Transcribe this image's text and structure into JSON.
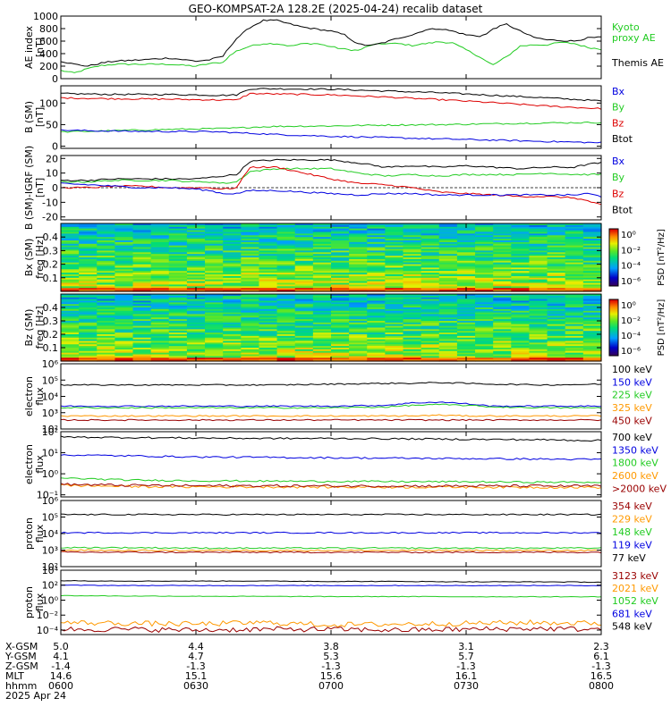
{
  "title": "GEO-KOMPSAT-2A 128.2E (2025-04-24) recalib dataset",
  "colors": {
    "black": "#000000",
    "blue": "#0000e0",
    "green": "#22cc22",
    "red": "#dd0000",
    "orange": "#ff9900",
    "darkred": "#990000",
    "darkblue": "#0000aa"
  },
  "chart_data": [
    {
      "type": "line",
      "id": "ae",
      "ylabel": [
        "AE index",
        "[nT]"
      ],
      "ylim": [
        0,
        1000
      ],
      "yticks": [
        0,
        200,
        400,
        600,
        800,
        1000
      ],
      "yticklabels": [
        "0",
        "200",
        "400",
        "600",
        "800",
        "1000"
      ],
      "x": [
        6.0,
        6.05,
        6.1,
        6.15,
        6.2,
        6.3,
        6.4,
        6.5,
        6.55,
        6.6,
        6.62,
        6.65,
        6.7,
        6.75,
        6.8,
        6.85,
        6.9,
        6.95,
        7.0,
        7.05,
        7.1,
        7.15,
        7.2,
        7.25,
        7.3,
        7.35,
        7.4,
        7.45,
        7.5,
        7.55,
        7.58,
        7.6,
        7.65,
        7.7,
        7.75,
        7.8,
        7.85,
        7.9,
        7.95,
        8.0
      ],
      "series": [
        {
          "name": "Kyoto proxy AE",
          "color": "green",
          "values": [
            130,
            90,
            160,
            210,
            230,
            230,
            230,
            200,
            240,
            260,
            350,
            440,
            520,
            560,
            560,
            520,
            560,
            560,
            510,
            470,
            450,
            540,
            560,
            560,
            530,
            560,
            590,
            570,
            460,
            350,
            260,
            220,
            350,
            520,
            540,
            540,
            580,
            560,
            500,
            470
          ]
        },
        {
          "name": "Themis AE",
          "color": "black",
          "values": [
            280,
            230,
            200,
            250,
            280,
            300,
            330,
            280,
            300,
            360,
            480,
            640,
            820,
            930,
            930,
            870,
            820,
            790,
            760,
            700,
            550,
            530,
            580,
            650,
            700,
            780,
            800,
            760,
            700,
            680,
            720,
            800,
            870,
            760,
            660,
            620,
            610,
            600,
            650,
            660
          ]
        }
      ],
      "labels": [
        {
          "text": "Kyoto",
          "color": "green"
        },
        {
          "text": "proxy AE",
          "color": "green"
        },
        {
          "text": "Themis AE",
          "color": "black"
        }
      ]
    },
    {
      "type": "line",
      "id": "b_sm",
      "ylabel": [
        "B (SM)",
        "[nT]"
      ],
      "ylim": [
        -5,
        140
      ],
      "yticks": [
        0,
        50,
        100
      ],
      "yticklabels": [
        "0",
        "50",
        "100"
      ],
      "x": [
        6.0,
        6.2,
        6.4,
        6.5,
        6.6,
        6.65,
        6.7,
        6.8,
        7.0,
        7.2,
        7.4,
        7.6,
        7.8,
        8.0
      ],
      "series": [
        {
          "name": "Btot",
          "color": "black",
          "values": [
            122,
            120,
            120,
            119,
            118,
            119,
            133,
            133,
            132,
            128,
            124,
            118,
            112,
            105
          ]
        },
        {
          "name": "Bz",
          "color": "red",
          "values": [
            112,
            110,
            109,
            108,
            107,
            107,
            122,
            121,
            119,
            114,
            108,
            101,
            93,
            87
          ]
        },
        {
          "name": "By",
          "color": "green",
          "values": [
            33,
            36,
            39,
            40,
            41,
            42,
            44,
            46,
            47,
            49,
            50,
            52,
            54,
            55
          ]
        },
        {
          "name": "Bx",
          "color": "blue",
          "values": [
            37,
            35,
            34,
            34,
            33,
            31,
            30,
            27,
            23,
            20,
            17,
            14,
            11,
            8
          ]
        }
      ],
      "labels": [
        {
          "text": "Bx",
          "color": "blue"
        },
        {
          "text": "By",
          "color": "green"
        },
        {
          "text": "Bz",
          "color": "red"
        },
        {
          "text": "Btot",
          "color": "black"
        }
      ]
    },
    {
      "type": "line",
      "id": "b_igrf",
      "ylabel": [
        "B (SM)-IGRF (SM)",
        "[nT]"
      ],
      "ylim": [
        -22,
        22
      ],
      "yticks": [
        -20,
        -10,
        0,
        10,
        20
      ],
      "yticklabels": [
        "-20",
        "-10",
        "0",
        "10",
        "20"
      ],
      "x": [
        6.0,
        6.1,
        6.2,
        6.3,
        6.4,
        6.5,
        6.55,
        6.6,
        6.65,
        6.7,
        6.8,
        6.9,
        7.0,
        7.1,
        7.2,
        7.3,
        7.4,
        7.5,
        7.6,
        7.7,
        7.8,
        7.9,
        7.95,
        8.0
      ],
      "series": [
        {
          "name": "Btot",
          "color": "black",
          "values": [
            5,
            5,
            6,
            6,
            6,
            6,
            7,
            8,
            9,
            18,
            19,
            19,
            19,
            17,
            14,
            15,
            14,
            15,
            14,
            13,
            14,
            14,
            16,
            17
          ]
        },
        {
          "name": "By",
          "color": "green",
          "values": [
            4,
            4,
            5,
            5,
            5,
            4,
            4,
            3,
            4,
            11,
            13,
            13,
            13,
            10,
            8,
            9,
            8,
            9,
            9,
            9,
            10,
            9,
            9,
            9
          ]
        },
        {
          "name": "Bz",
          "color": "red",
          "values": [
            0,
            0,
            1,
            1,
            0,
            0,
            0,
            -1,
            0,
            14,
            14,
            10,
            6,
            3,
            2,
            0,
            -3,
            -4,
            -5,
            -6,
            -6,
            -7,
            -9,
            -12
          ]
        },
        {
          "name": "Bx",
          "color": "blue",
          "values": [
            3,
            2,
            1,
            0,
            0,
            -1,
            -2,
            -4,
            -4,
            -2,
            -2,
            -3,
            -4,
            -5,
            -4,
            -4,
            -5,
            -5,
            -5,
            -5,
            -5,
            -5,
            -4,
            -6
          ]
        }
      ],
      "labels": [
        {
          "text": "Bx",
          "color": "blue"
        },
        {
          "text": "By",
          "color": "green"
        },
        {
          "text": "Bz",
          "color": "red"
        },
        {
          "text": "Btot",
          "color": "black"
        }
      ]
    },
    {
      "type": "heatmap",
      "id": "bx_spec",
      "ylabel": [
        "Bx (SM)",
        "freq [Hz]"
      ],
      "ylim": [
        0.0,
        0.5
      ],
      "yticks": [
        0.1,
        0.2,
        0.3,
        0.4
      ],
      "yticklabels": [
        "0.1",
        "0.2",
        "0.3",
        "0.4"
      ],
      "colorbar": {
        "label": "PSD [nT²/Hz]",
        "ticklabels": [
          "10⁰",
          "10⁻²",
          "10⁻⁴",
          "10⁻⁶"
        ]
      }
    },
    {
      "type": "heatmap",
      "id": "bz_spec",
      "ylabel": [
        "Bz (SM)",
        "freq [Hz]"
      ],
      "ylim": [
        0.0,
        0.5
      ],
      "yticks": [
        0.1,
        0.2,
        0.3,
        0.4
      ],
      "yticklabels": [
        "0.1",
        "0.2",
        "0.3",
        "0.4"
      ],
      "colorbar": {
        "label": "PSD [nT²/Hz]",
        "ticklabels": [
          "10⁰",
          "10⁻²",
          "10⁻⁴",
          "10⁻⁶"
        ]
      }
    },
    {
      "type": "line",
      "id": "e_flux_low",
      "ylabel": [
        "electron",
        "flux"
      ],
      "ylog": true,
      "ylim": [
        2,
        6
      ],
      "yticks": [
        2,
        3,
        4,
        5,
        6
      ],
      "yticklabels": [
        "10²",
        "10³",
        "10⁴",
        "10⁵",
        "10⁶"
      ],
      "x": [
        6.0,
        6.2,
        6.4,
        6.6,
        6.8,
        7.0,
        7.2,
        7.3,
        7.4,
        7.5,
        7.6,
        7.8,
        8.0
      ],
      "series": [
        {
          "name": "100 keV",
          "color": "black",
          "values": [
            4.7,
            4.7,
            4.7,
            4.7,
            4.7,
            4.75,
            4.8,
            4.8,
            4.85,
            4.8,
            4.75,
            4.7,
            4.75
          ]
        },
        {
          "name": "150 keV",
          "color": "blue",
          "values": [
            3.4,
            3.4,
            3.4,
            3.4,
            3.4,
            3.4,
            3.45,
            3.6,
            3.65,
            3.55,
            3.4,
            3.4,
            3.4
          ]
        },
        {
          "name": "225 keV",
          "color": "green",
          "values": [
            3.3,
            3.3,
            3.3,
            3.3,
            3.3,
            3.3,
            3.35,
            3.45,
            3.5,
            3.45,
            3.35,
            3.3,
            3.3
          ]
        },
        {
          "name": "325 keV",
          "color": "orange",
          "values": [
            2.8,
            2.8,
            2.8,
            2.8,
            2.8,
            2.8,
            2.8,
            2.8,
            2.85,
            2.8,
            2.8,
            2.8,
            2.8
          ]
        },
        {
          "name": "450 keV",
          "color": "darkred",
          "values": [
            2.55,
            2.55,
            2.55,
            2.55,
            2.55,
            2.55,
            2.55,
            2.55,
            2.55,
            2.55,
            2.55,
            2.55,
            2.55
          ]
        }
      ],
      "labels": [
        {
          "text": "100 keV",
          "color": "black"
        },
        {
          "text": "150 keV",
          "color": "blue"
        },
        {
          "text": "225 keV",
          "color": "green"
        },
        {
          "text": "325 keV",
          "color": "orange"
        },
        {
          "text": "450 keV",
          "color": "darkred"
        }
      ]
    },
    {
      "type": "line",
      "id": "e_flux_high",
      "ylabel": [
        "electron",
        "flux"
      ],
      "ylog": true,
      "ylim": [
        -1.1,
        2
      ],
      "yticks": [
        -1,
        0,
        1,
        2
      ],
      "yticklabels": [
        "10⁻¹",
        "10⁰",
        "10¹",
        "10²"
      ],
      "x": [
        6.0,
        6.25,
        6.5,
        6.75,
        7.0,
        7.25,
        7.5,
        7.75,
        8.0
      ],
      "series": [
        {
          "name": "700 keV",
          "color": "black",
          "values": [
            1.75,
            1.72,
            1.7,
            1.68,
            1.68,
            1.66,
            1.64,
            1.62,
            1.58
          ]
        },
        {
          "name": "1350 keV",
          "color": "blue",
          "values": [
            0.9,
            0.85,
            0.8,
            0.78,
            0.76,
            0.74,
            0.72,
            0.7,
            0.68
          ]
        },
        {
          "name": "1800 keV",
          "color": "green",
          "values": [
            -0.2,
            -0.3,
            -0.33,
            -0.35,
            -0.36,
            -0.37,
            -0.38,
            -0.4,
            -0.4
          ]
        },
        {
          "name": "2600 keV",
          "color": "orange",
          "values": [
            -0.55,
            -0.6,
            -0.62,
            -0.62,
            -0.63,
            -0.63,
            -0.63,
            -0.64,
            -0.64
          ]
        },
        {
          "name": ">2000 keV",
          "color": "darkred",
          "values": [
            -0.5,
            -0.55,
            -0.57,
            -0.57,
            -0.58,
            -0.58,
            -0.58,
            -0.58,
            -0.58
          ]
        }
      ],
      "labels": [
        {
          "text": "700 keV",
          "color": "black"
        },
        {
          "text": "1350 keV",
          "color": "blue"
        },
        {
          "text": "1800 keV",
          "color": "green"
        },
        {
          "text": "2600 keV",
          "color": "orange"
        },
        {
          "text": ">2000 keV",
          "color": "darkred"
        }
      ]
    },
    {
      "type": "line",
      "id": "p_flux_low",
      "ylabel": [
        "proton",
        "flux"
      ],
      "ylog": true,
      "ylim": [
        2,
        6
      ],
      "yticks": [
        2,
        3,
        4,
        5,
        6
      ],
      "yticklabels": [
        "10²",
        "10³",
        "10⁴",
        "10⁵",
        "10⁶"
      ],
      "x": [
        6.0,
        6.25,
        6.5,
        6.75,
        7.0,
        7.25,
        7.5,
        7.75,
        8.0
      ],
      "series": [
        {
          "name": "77 keV",
          "color": "black",
          "values": [
            5.15,
            5.15,
            5.15,
            5.15,
            5.15,
            5.15,
            5.15,
            5.15,
            5.15
          ]
        },
        {
          "name": "119 keV",
          "color": "blue",
          "values": [
            4.05,
            4.05,
            4.05,
            4.05,
            4.05,
            4.05,
            4.05,
            4.05,
            4.05
          ]
        },
        {
          "name": "148 keV",
          "color": "green",
          "values": [
            3.15,
            3.15,
            3.12,
            3.12,
            3.12,
            3.12,
            3.12,
            3.12,
            3.12
          ]
        },
        {
          "name": "229 keV",
          "color": "orange",
          "values": [
            3.0,
            2.98,
            2.98,
            2.98,
            2.98,
            2.98,
            2.98,
            2.98,
            2.98
          ]
        },
        {
          "name": "354 keV",
          "color": "darkred",
          "values": [
            2.88,
            2.87,
            2.87,
            2.87,
            2.87,
            2.87,
            2.87,
            2.87,
            2.87
          ]
        }
      ],
      "labels": [
        {
          "text": "354 keV",
          "color": "darkred"
        },
        {
          "text": "229 keV",
          "color": "orange"
        },
        {
          "text": "148 keV",
          "color": "green"
        },
        {
          "text": "119 keV",
          "color": "blue"
        },
        {
          "text": "77 keV",
          "color": "black"
        }
      ]
    },
    {
      "type": "line",
      "id": "p_flux_high",
      "ylabel": [
        "proton",
        "flux"
      ],
      "ylog": true,
      "ylim": [
        -4.6,
        4
      ],
      "yticks": [
        -4,
        -2,
        0,
        2,
        4
      ],
      "yticklabels": [
        "10⁻⁴",
        "10⁻²",
        "10⁰",
        "10²",
        "10⁴"
      ],
      "x": [
        6.0,
        6.25,
        6.5,
        6.75,
        7.0,
        7.25,
        7.5,
        7.75,
        8.0
      ],
      "series": [
        {
          "name": "548 keV",
          "color": "black",
          "values": [
            2.6,
            2.55,
            2.55,
            2.55,
            2.5,
            2.5,
            2.45,
            2.45,
            2.4
          ]
        },
        {
          "name": "681 keV",
          "color": "blue",
          "values": [
            2.0,
            1.95,
            1.95,
            1.95,
            1.95,
            1.95,
            1.95,
            1.95,
            1.95
          ]
        },
        {
          "name": "1052 keV",
          "color": "green",
          "values": [
            0.6,
            0.55,
            0.52,
            0.5,
            0.48,
            0.48,
            0.46,
            0.45,
            0.45
          ]
        },
        {
          "name": "2021 keV",
          "color": "orange",
          "values": [
            -3.0,
            -3.1,
            -3.2,
            -3.0,
            -3.3,
            -3.2,
            -3.1,
            -3.0,
            -3.1
          ]
        },
        {
          "name": "3123 keV",
          "color": "darkred",
          "values": [
            -3.9,
            -3.9,
            -4.0,
            -3.9,
            -3.9,
            -4.0,
            -3.9,
            -3.8,
            -3.9
          ]
        }
      ],
      "labels": [
        {
          "text": "3123 keV",
          "color": "darkred"
        },
        {
          "text": "2021 keV",
          "color": "orange"
        },
        {
          "text": "1052 keV",
          "color": "green"
        },
        {
          "text": "681 keV",
          "color": "blue"
        },
        {
          "text": "548 keV",
          "color": "black"
        }
      ]
    }
  ],
  "x_axis": {
    "range": [
      6.0,
      8.0
    ],
    "ticks": [
      6.0,
      6.5,
      7.0,
      7.5,
      8.0
    ],
    "rows": [
      {
        "label": "X-GSM",
        "values": [
          "5.0",
          "4.4",
          "3.8",
          "3.1",
          "2.3"
        ]
      },
      {
        "label": "Y-GSM",
        "values": [
          "4.1",
          "4.7",
          "5.3",
          "5.7",
          "6.1"
        ]
      },
      {
        "label": "Z-GSM",
        "values": [
          "-1.4",
          "-1.3",
          "-1.3",
          "-1.3",
          "-1.3"
        ]
      },
      {
        "label": "MLT",
        "values": [
          "14.6",
          "15.1",
          "15.6",
          "16.1",
          "16.5"
        ]
      },
      {
        "label": "hhmm",
        "values": [
          "0600",
          "0630",
          "0700",
          "0730",
          "0800"
        ]
      }
    ],
    "date": "2025 Apr 24"
  }
}
